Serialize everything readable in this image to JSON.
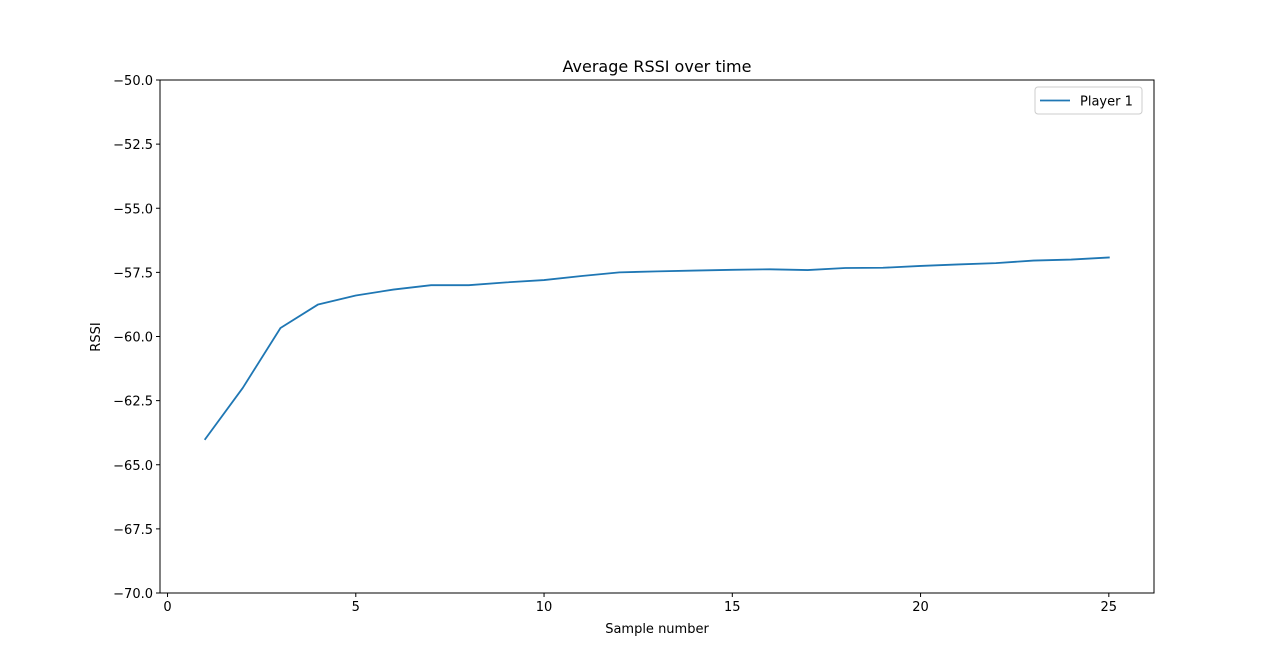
{
  "chart_data": {
    "type": "line",
    "title": "Average RSSI over time",
    "xlabel": "Sample number",
    "ylabel": "RSSI",
    "xlim": [
      -0.2,
      26.2
    ],
    "ylim": [
      -70.0,
      -50.0
    ],
    "xticks": [
      0,
      5,
      10,
      15,
      20,
      25
    ],
    "xtick_labels": [
      "0",
      "5",
      "10",
      "15",
      "20",
      "25"
    ],
    "yticks": [
      -70.0,
      -67.5,
      -65.0,
      -62.5,
      -60.0,
      -57.5,
      -55.0,
      -52.5,
      -50.0
    ],
    "ytick_labels": [
      "−70.0",
      "−67.5",
      "−65.0",
      "−62.5",
      "−60.0",
      "−57.5",
      "−55.0",
      "−52.5",
      "−50.0"
    ],
    "grid": false,
    "legend_position": "upper right",
    "series": [
      {
        "name": "Player 1",
        "color": "#1f77b4",
        "x": [
          1,
          2,
          3,
          4,
          5,
          6,
          7,
          8,
          9,
          10,
          11,
          12,
          13,
          14,
          15,
          16,
          17,
          18,
          19,
          20,
          21,
          22,
          23,
          24,
          25
        ],
        "y": [
          -64.0,
          -62.0,
          -59.67,
          -58.75,
          -58.4,
          -58.17,
          -58.0,
          -58.0,
          -57.89,
          -57.8,
          -57.64,
          -57.5,
          -57.46,
          -57.43,
          -57.4,
          -57.38,
          -57.41,
          -57.33,
          -57.32,
          -57.25,
          -57.19,
          -57.14,
          -57.04,
          -57.0,
          -56.92
        ]
      }
    ]
  }
}
